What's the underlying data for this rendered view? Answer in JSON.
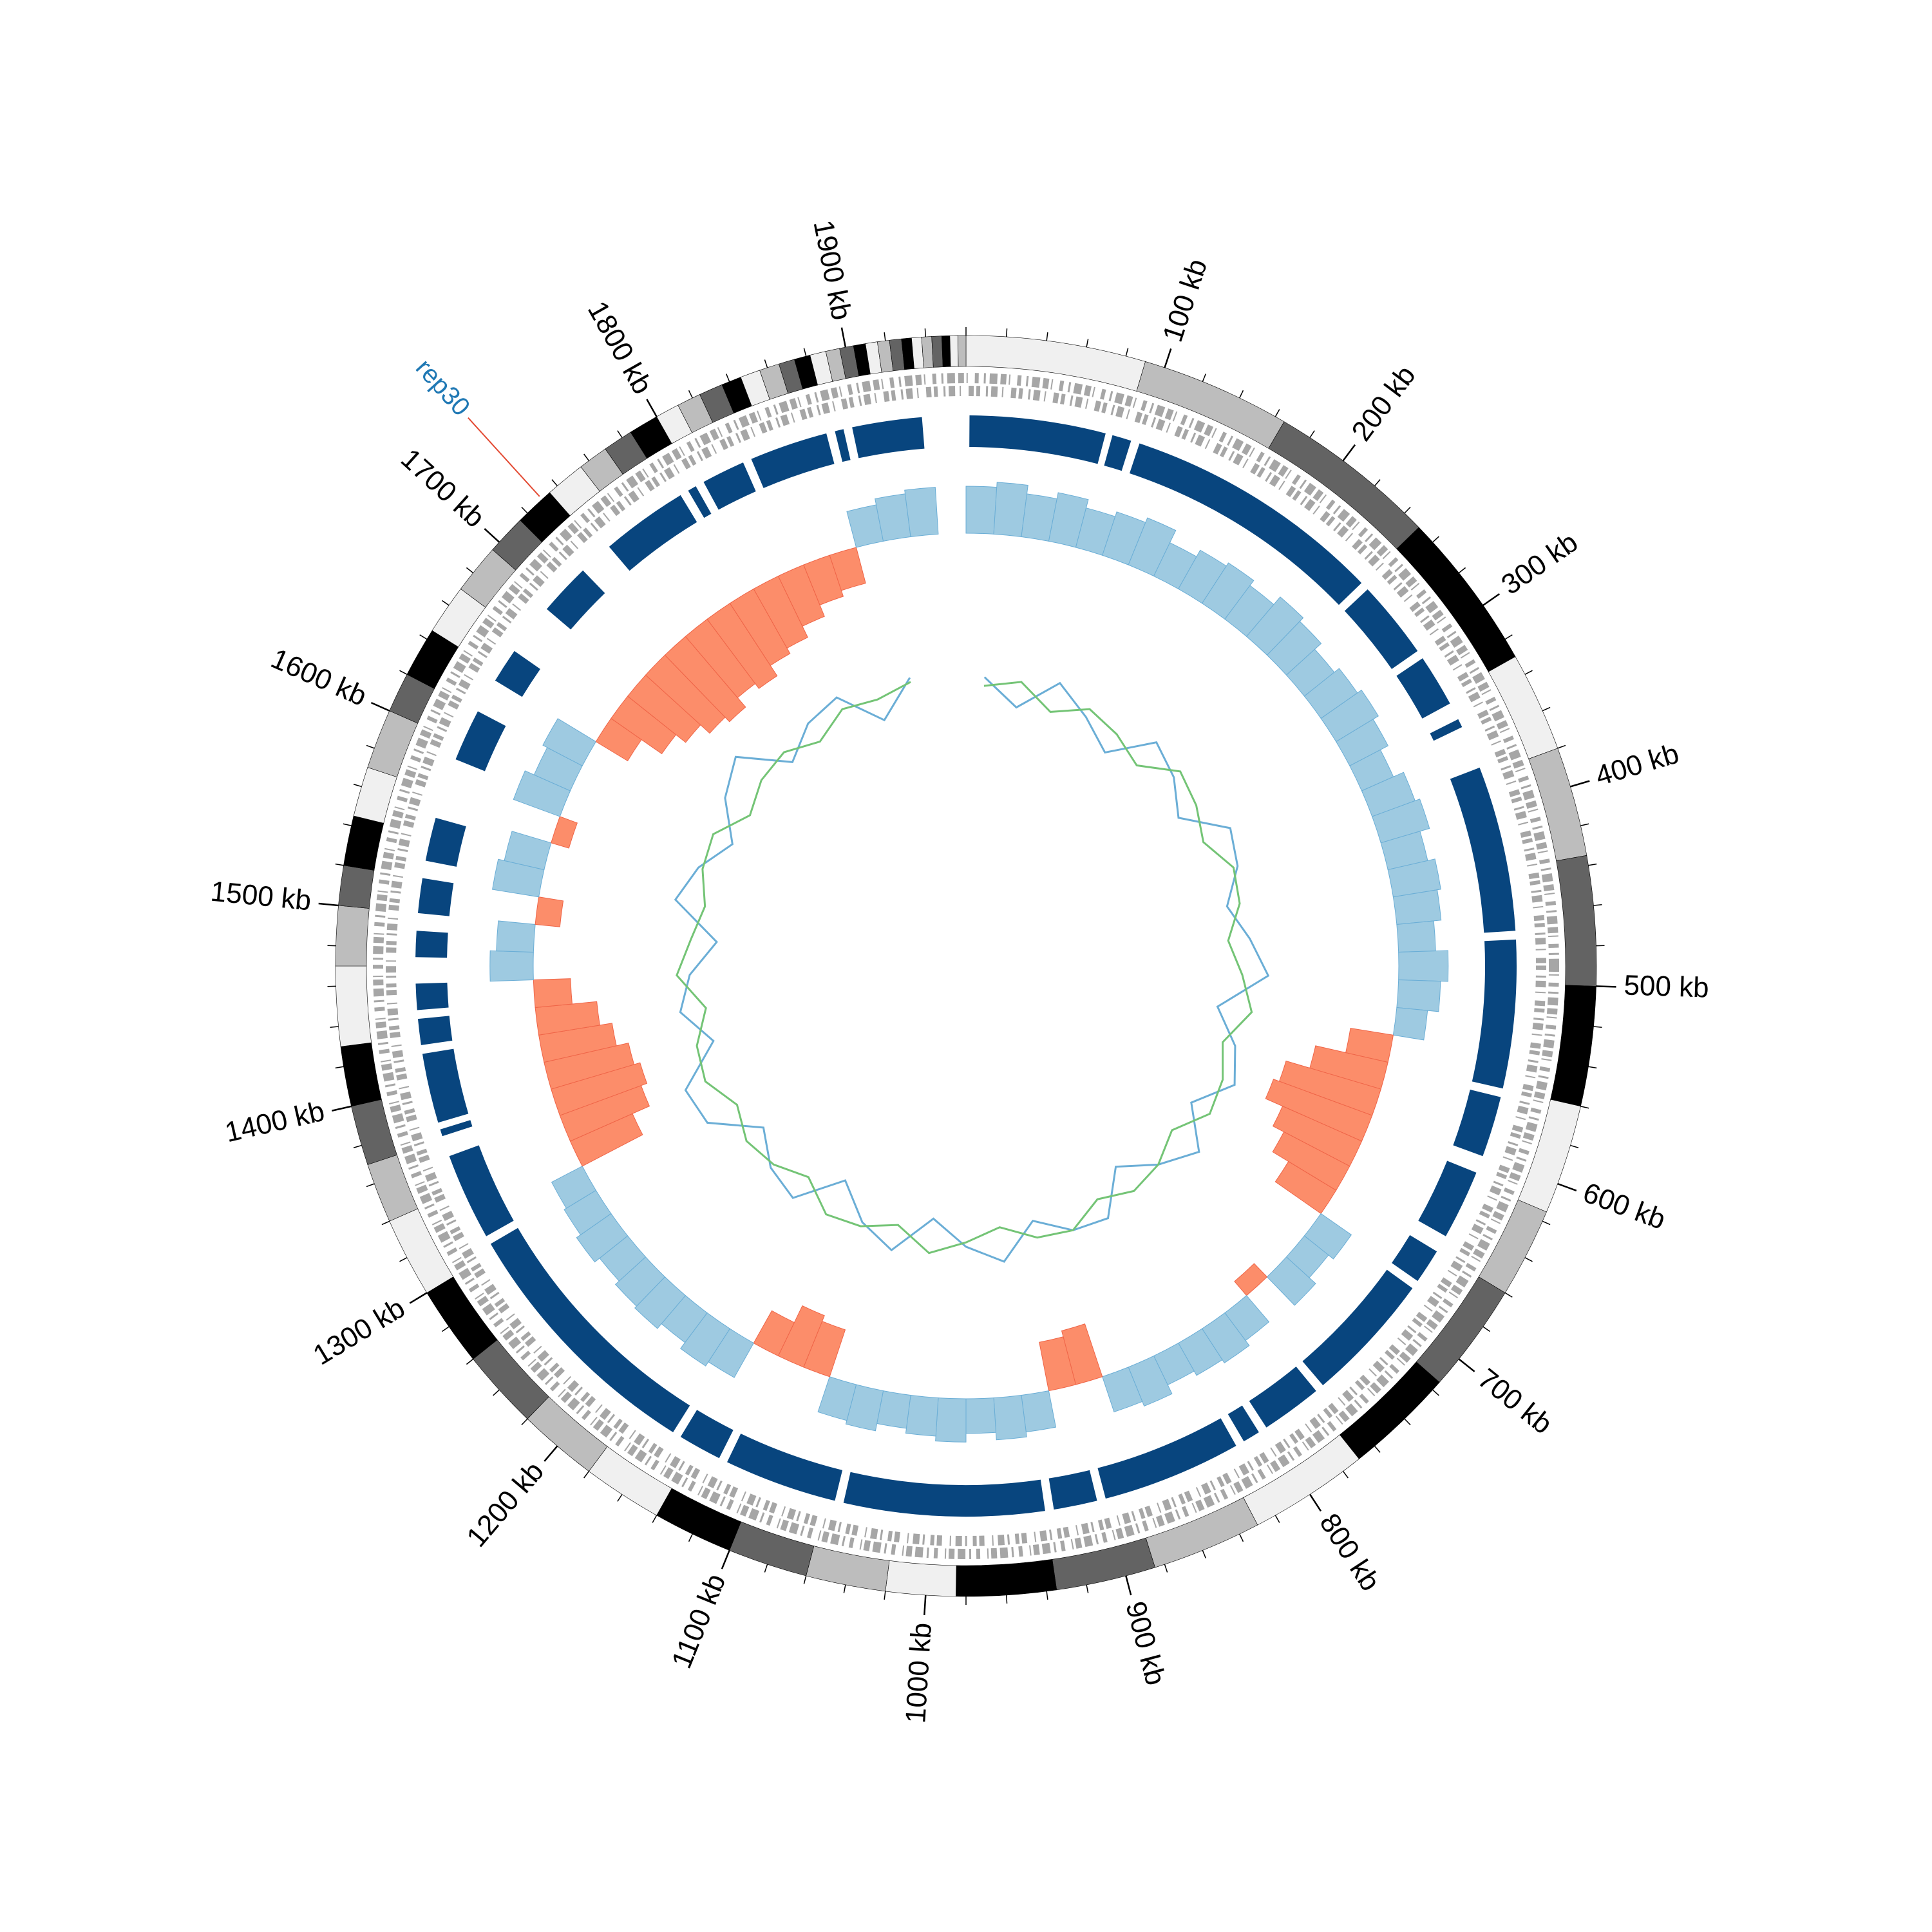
{
  "chart_data": {
    "type": "circos",
    "genome_length": 1960,
    "ticks": [
      {
        "value": 100,
        "label": "100 kb"
      },
      {
        "value": 200,
        "label": "200 kb"
      },
      {
        "value": 300,
        "label": "300 kb"
      },
      {
        "value": 400,
        "label": "400 kb"
      },
      {
        "value": 500,
        "label": "500 kb"
      },
      {
        "value": 600,
        "label": "600 kb"
      },
      {
        "value": 700,
        "label": "700 kb"
      },
      {
        "value": 800,
        "label": "800 kb"
      },
      {
        "value": 900,
        "label": "900 kb"
      },
      {
        "value": 1000,
        "label": "1000 kb"
      },
      {
        "value": 1100,
        "label": "1100 kb"
      },
      {
        "value": 1200,
        "label": "1200 kb"
      },
      {
        "value": 1300,
        "label": "1300 kb"
      },
      {
        "value": 1400,
        "label": "1400 kb"
      },
      {
        "value": 1500,
        "label": "1500 kb"
      },
      {
        "value": 1600,
        "label": "1600 kb"
      },
      {
        "value": 1700,
        "label": "1700 kb"
      },
      {
        "value": 1800,
        "label": "1800 kb"
      },
      {
        "value": 1900,
        "label": "1900 kb"
      }
    ],
    "minor_tick_step": 20,
    "ideogram": {
      "band_ends": [
        90,
        165,
        250,
        330,
        380,
        435,
        500,
        560,
        615,
        660,
        715,
        770,
        830,
        885,
        935,
        985,
        1020,
        1060,
        1100,
        1140,
        1180,
        1220,
        1260,
        1300,
        1340,
        1370,
        1400,
        1430,
        1470,
        1500,
        1520,
        1545,
        1570,
        1600,
        1620,
        1645,
        1670,
        1695,
        1715,
        1735,
        1755,
        1770,
        1785,
        1800,
        1812,
        1824,
        1836,
        1846,
        1856,
        1866,
        1874,
        1882,
        1890,
        1897,
        1904,
        1910,
        1916,
        1922,
        1928,
        1933,
        1938,
        1943,
        1948,
        1952,
        1956,
        1960
      ],
      "colors": [
        "#f0f0f0",
        "#bdbdbd",
        "#636363",
        "#000000"
      ]
    },
    "blocks": {
      "color": "#08457e",
      "starts": [
        2,
        84,
        100,
        255,
        305,
        345,
        375,
        475,
        565,
        610,
        660,
        685,
        765,
        805,
        820,
        905,
        935,
        1055,
        1125,
        1155,
        1310,
        1372,
        1380,
        1425,
        1445,
        1475,
        1500,
        1530,
        1590,
        1640,
        1690,
        1740,
        1795,
        1805,
        1835,
        1885,
        1895
      ],
      "ends": [
        80,
        95,
        250,
        300,
        335,
        350,
        470,
        560,
        600,
        650,
        680,
        760,
        800,
        815,
        900,
        930,
        1050,
        1120,
        1150,
        1305,
        1360,
        1376,
        1420,
        1440,
        1460,
        1490,
        1520,
        1555,
        1620,
        1660,
        1720,
        1790,
        1800,
        1830,
        1880,
        1890,
        1935
      ]
    },
    "histogram": {
      "bin_kb": 20,
      "ylim": [
        -1,
        0.5
      ],
      "positive_color": "#9ecae1",
      "negative_color": "#fc8d6a",
      "values": [
        0.38,
        0.42,
        0.35,
        0.4,
        0.33,
        0.37,
        0.41,
        0.3,
        0.36,
        0.39,
        0.34,
        0.42,
        0.38,
        0.31,
        0.36,
        0.4,
        0.35,
        0.28,
        0.37,
        0.41,
        0.33,
        0.39,
        0.36,
        0.3,
        0.4,
        0.34,
        0.25,
        -0.35,
        -0.6,
        -0.8,
        -0.85,
        -0.7,
        -0.6,
        -0.45,
        0.3,
        0.25,
        0.32,
        -0.15,
        0.28,
        0.33,
        0.3,
        0.26,
        0.34,
        0.3,
        -0.45,
        -0.4,
        0.3,
        0.34,
        0.28,
        0.35,
        0.31,
        0.27,
        0.33,
        0.3,
        -0.4,
        -0.45,
        -0.3,
        0.32,
        0.36,
        0.3,
        0.35,
        0.33,
        0.29,
        0.34,
        0.3,
        0.28,
        -0.55,
        -0.7,
        -0.75,
        -0.7,
        -0.6,
        -0.5,
        -0.3,
        0.35,
        0.3,
        -0.2,
        0.38,
        0.33,
        -0.15,
        0.4,
        0.32,
        0.36,
        -0.3,
        -0.5,
        -0.6,
        -0.7,
        -0.75,
        -0.65,
        -0.7,
        -0.6,
        -0.55,
        -0.45,
        -0.35,
        -0.3,
        0.3,
        0.35,
        0.38,
        null
      ]
    },
    "lines": {
      "bin_kb": 40,
      "ylim": [
        -1,
        1
      ],
      "series": [
        {
          "color": "#6baed6",
          "values": [
            0.2,
            -0.1,
            0.3,
            0.05,
            -0.2,
            0.25,
            0.1,
            -0.15,
            0.3,
            0.2,
            -0.05,
            0.15,
            0.35,
            -0.2,
            0.1,
            0.25,
            -0.1,
            0.3,
            0.05,
            -0.25,
            0.2,
            0.15,
            -0.1,
            0.3,
            0.1,
            -0.2,
            0.25,
            0.05,
            -0.3,
            0.2,
            0.1,
            -0.15,
            0.35,
            0.4,
            -0.1,
            0.2,
            0.05,
            -0.25,
            0.3,
            0.15,
            -0.1,
            0.25,
            0.45,
            -0.05,
            0.2,
            0.3,
            -0.15,
            0.25,
            null
          ]
        },
        {
          "color": "#74c476",
          "values": [
            0.1,
            0.2,
            -0.05,
            0.15,
            0.05,
            -0.1,
            0.2,
            0.1,
            -0.05,
            0.15,
            0.1,
            -0.1,
            0.05,
            0.2,
            -0.05,
            0.1,
            0.15,
            -0.1,
            0.05,
            0.1,
            -0.05,
            0.15,
            0.1,
            -0.1,
            0.05,
            0.2,
            -0.05,
            0.1,
            0.15,
            -0.1,
            0.05,
            0.1,
            -0.05,
            0.15,
            0.1,
            -0.1,
            0.2,
            0.05,
            -0.05,
            0.1,
            0.15,
            -0.1,
            0.05,
            0.1,
            -0.05,
            0.15,
            0.1,
            0.2,
            null
          ]
        }
      ]
    },
    "annotation": {
      "label": "rep30",
      "position": 1730,
      "text_color": "#1f78b4",
      "line_color": "#e34a33"
    }
  }
}
